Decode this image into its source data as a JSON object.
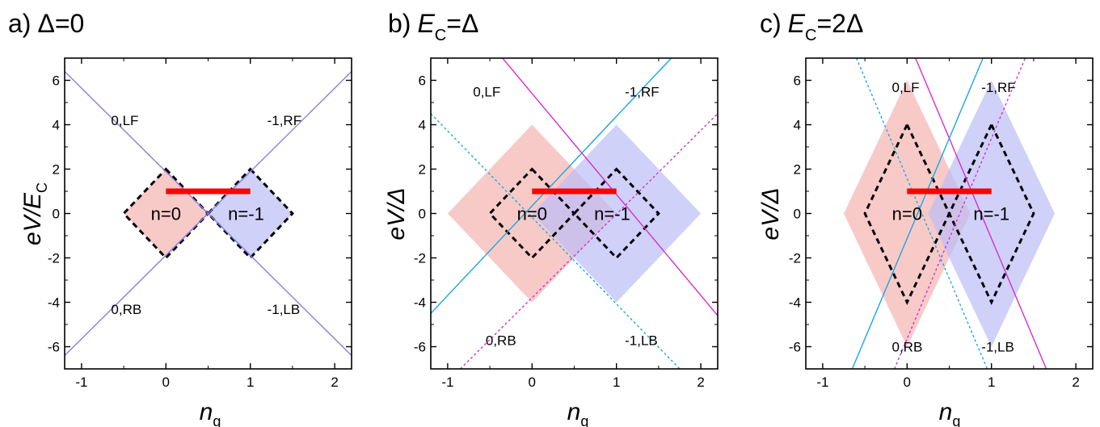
{
  "chart_data": [
    {
      "panel_letter": "a)",
      "title_text": "Δ=0",
      "type": "line",
      "ylabel_main": "eV/E",
      "ylabel_sub": "C",
      "xlabel_main": "n",
      "xlabel_sub": "g",
      "xlim": [
        -1.2,
        2.2
      ],
      "ylim": [
        -7,
        7
      ],
      "xticks": [
        -1,
        0,
        1,
        2
      ],
      "yticks": [
        -6,
        -4,
        -2,
        0,
        2,
        4,
        6
      ],
      "colors": {
        "n0": "#f4b4b0",
        "n1": "#bcbdf6",
        "magenta": "#d52fd0",
        "cyan": "#1aa7e3",
        "bar": "#ff0000",
        "mixed": "#8a7ee6"
      },
      "shaded_regions": [
        {
          "label": "n=0",
          "color": "n0",
          "points": [
            [
              0,
              2
            ],
            [
              0.5,
              0
            ],
            [
              0,
              -2
            ],
            [
              -0.5,
              0
            ]
          ],
          "label_at": [
            0.0,
            0.0
          ]
        },
        {
          "label": "n=-1",
          "color": "n1",
          "points": [
            [
              1,
              2
            ],
            [
              1.5,
              0
            ],
            [
              1,
              -2
            ],
            [
              0.5,
              0
            ]
          ],
          "label_at": [
            0.95,
            0.0
          ]
        }
      ],
      "dashed_diamonds": [
        {
          "center": [
            0,
            0
          ],
          "half_width": 0.5,
          "half_height": 2
        },
        {
          "center": [
            1,
            0
          ],
          "half_width": 0.5,
          "half_height": 2
        }
      ],
      "lines": [
        {
          "p1": [
            -1.2,
            6.4
          ],
          "p2": [
            2.2,
            -6.4
          ],
          "color": "mixed",
          "dash": false
        },
        {
          "p1": [
            -1.2,
            -6.4
          ],
          "p2": [
            2.2,
            6.4
          ],
          "color": "mixed",
          "dash": false
        }
      ],
      "bar": {
        "x": [
          0,
          1
        ],
        "y": 1
      },
      "annotations": [
        {
          "text": "0,LF",
          "at": [
            -0.65,
            4.2
          ]
        },
        {
          "text": "-1,RF",
          "at": [
            1.2,
            4.2
          ]
        },
        {
          "text": "0,RB",
          "at": [
            -0.65,
            -4.3
          ]
        },
        {
          "text": "-1,LB",
          "at": [
            1.2,
            -4.3
          ]
        }
      ]
    },
    {
      "panel_letter": "b)",
      "title_text": "E",
      "title_sub": "C",
      "title_suffix": "=Δ",
      "type": "line",
      "ylabel_main": "eV/Δ",
      "ylabel_sub": "",
      "xlabel_main": "n",
      "xlabel_sub": "g",
      "xlim": [
        -1.2,
        2.2
      ],
      "ylim": [
        -7,
        7
      ],
      "xticks": [
        -1,
        0,
        1,
        2
      ],
      "yticks": [
        -6,
        -4,
        -2,
        0,
        2,
        4,
        6
      ],
      "colors": {
        "n0": "#f4b4b0",
        "n1": "#bcbdf6",
        "magenta": "#d52fd0",
        "cyan": "#1aa7e3",
        "bar": "#ff0000",
        "mixed": "#8a7ee6"
      },
      "shaded_regions": [
        {
          "label": "n=0",
          "color": "n0",
          "points": [
            [
              0,
              4
            ],
            [
              1,
              0
            ],
            [
              0,
              -4
            ],
            [
              -1,
              0
            ]
          ],
          "label_at": [
            0.0,
            0.0
          ]
        },
        {
          "label": "n=-1",
          "color": "n1",
          "points": [
            [
              1,
              4
            ],
            [
              2,
              0
            ],
            [
              1,
              -4
            ],
            [
              0,
              0
            ]
          ],
          "label_at": [
            0.95,
            0.0
          ]
        }
      ],
      "dashed_diamonds": [
        {
          "center": [
            0,
            0
          ],
          "half_width": 0.5,
          "half_height": 2
        },
        {
          "center": [
            1,
            0
          ],
          "half_width": 0.5,
          "half_height": 2
        }
      ],
      "lines": [
        {
          "p1": [
            -0.35,
            7
          ],
          "p2": [
            2.2,
            -4.6
          ],
          "color": "magenta",
          "dash": false
        },
        {
          "p1": [
            -0.85,
            -7
          ],
          "p2": [
            2.2,
            4.5
          ],
          "color": "magenta",
          "dash": true
        },
        {
          "p1": [
            -1.2,
            -4.5
          ],
          "p2": [
            1.65,
            7
          ],
          "color": "cyan",
          "dash": false
        },
        {
          "p1": [
            -1.2,
            4.5
          ],
          "p2": [
            1.75,
            -7
          ],
          "color": "cyan",
          "dash": true
        }
      ],
      "bar": {
        "x": [
          0,
          1
        ],
        "y": 1
      },
      "annotations": [
        {
          "text": "0,LF",
          "at": [
            -0.7,
            5.5
          ]
        },
        {
          "text": "-1,RF",
          "at": [
            1.1,
            5.5
          ]
        },
        {
          "text": "0,RB",
          "at": [
            -0.55,
            -5.7
          ]
        },
        {
          "text": "-1,LB",
          "at": [
            1.1,
            -5.7
          ]
        }
      ]
    },
    {
      "panel_letter": "c)",
      "title_text": "E",
      "title_sub": "C",
      "title_suffix": "=2Δ",
      "type": "line",
      "ylabel_main": "eV/Δ",
      "ylabel_sub": "",
      "xlabel_main": "n",
      "xlabel_sub": "g",
      "xlim": [
        -1.2,
        2.2
      ],
      "ylim": [
        -7,
        7
      ],
      "xticks": [
        -1,
        0,
        1,
        2
      ],
      "yticks": [
        -6,
        -4,
        -2,
        0,
        2,
        4,
        6
      ],
      "colors": {
        "n0": "#f4b4b0",
        "n1": "#bcbdf6",
        "magenta": "#d52fd0",
        "cyan": "#1aa7e3",
        "bar": "#ff0000",
        "mixed": "#8a7ee6"
      },
      "shaded_regions": [
        {
          "label": "n=0",
          "color": "n0",
          "points": [
            [
              0,
              6
            ],
            [
              0.75,
              0
            ],
            [
              0,
              -6
            ],
            [
              -0.75,
              0
            ]
          ],
          "label_at": [
            0.0,
            0.0
          ]
        },
        {
          "label": "n=-1",
          "color": "n1",
          "points": [
            [
              1,
              6
            ],
            [
              1.75,
              0
            ],
            [
              1,
              -6
            ],
            [
              0.25,
              0
            ]
          ],
          "label_at": [
            1.0,
            0.0
          ]
        }
      ],
      "dashed_diamonds": [
        {
          "center": [
            0,
            0
          ],
          "half_width": 0.5,
          "half_height": 4
        },
        {
          "center": [
            1,
            0
          ],
          "half_width": 0.5,
          "half_height": 4
        }
      ],
      "lines": [
        {
          "p1": [
            0.1,
            7
          ],
          "p2": [
            1.65,
            -7
          ],
          "color": "magenta",
          "dash": false
        },
        {
          "p1": [
            -0.15,
            -7
          ],
          "p2": [
            1.4,
            7
          ],
          "color": "magenta",
          "dash": true
        },
        {
          "p1": [
            -0.65,
            -7
          ],
          "p2": [
            0.9,
            7
          ],
          "color": "cyan",
          "dash": false
        },
        {
          "p1": [
            -0.6,
            7
          ],
          "p2": [
            0.95,
            -7
          ],
          "color": "cyan",
          "dash": true
        }
      ],
      "bar": {
        "x": [
          0,
          1
        ],
        "y": 1
      },
      "annotations": [
        {
          "text": "0,LF",
          "at": [
            -0.18,
            5.7
          ]
        },
        {
          "text": "-1,RF",
          "at": [
            0.88,
            5.7
          ]
        },
        {
          "text": "0,RB",
          "at": [
            -0.18,
            -6.0
          ]
        },
        {
          "text": "-1,LB",
          "at": [
            0.88,
            -6.0
          ]
        }
      ]
    }
  ]
}
